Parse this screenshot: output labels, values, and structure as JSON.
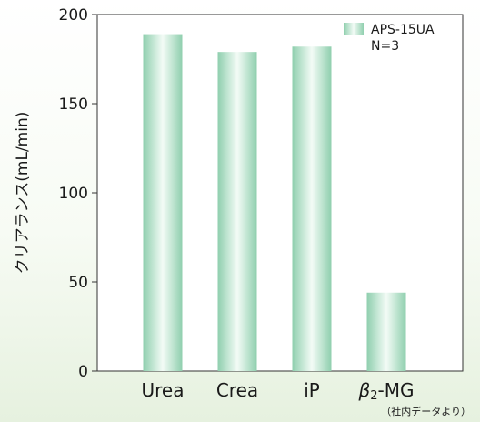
{
  "chart_data": {
    "type": "bar",
    "categories": [
      "Urea",
      "Crea",
      "iP",
      "β2-MG"
    ],
    "category_display": [
      {
        "main": "Urea",
        "sub": ""
      },
      {
        "main": "Crea",
        "sub": ""
      },
      {
        "main": "iP",
        "sub": ""
      },
      {
        "main": "β",
        "sub": "2",
        "tail": "-MG"
      }
    ],
    "series": [
      {
        "name": "APS-15UA",
        "values": [
          189,
          179,
          182,
          44
        ]
      }
    ],
    "legend_note": "N=3",
    "ylabel": "クリアランス(mL/min)",
    "ylim": [
      0,
      200
    ],
    "yticks": [
      "0",
      "50",
      "100",
      "150",
      "200"
    ],
    "source_note": "（社内データより）",
    "grid": false,
    "legend_position": "top-right"
  },
  "colors": {
    "bar_edge": "#8fcfae",
    "bar_center": "#f3fbf6",
    "axis": "#333333"
  }
}
